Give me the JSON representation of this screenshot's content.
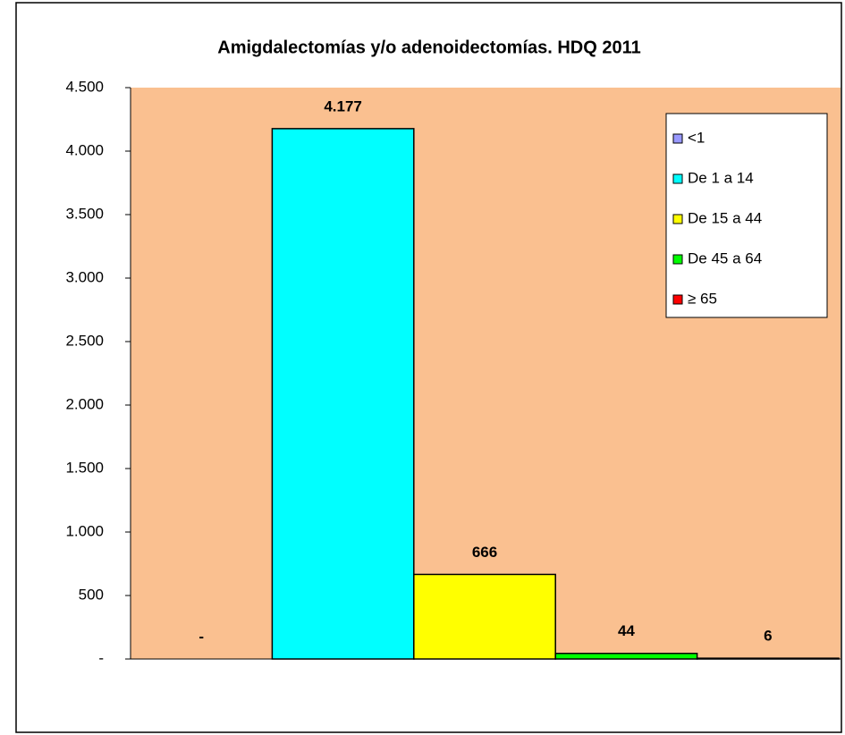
{
  "chart_data": {
    "type": "bar",
    "title": "Amigdalectomías y/o adenoidectomías. HDQ  2011",
    "series": [
      {
        "name": "<1",
        "color": "#9999ff",
        "values": [
          0
        ],
        "value_labels": [
          "-"
        ]
      },
      {
        "name": "De 1 a 14",
        "color": "#00ffff",
        "values": [
          4177
        ],
        "value_labels": [
          "4.177"
        ]
      },
      {
        "name": "De 15 a 44",
        "color": "#ffff00",
        "values": [
          666
        ]
      },
      {
        "name": "De 45 a 64",
        "color": "#00ff00",
        "values": [
          44
        ]
      },
      {
        "name": "≥ 65",
        "color": "#ff0000",
        "values": [
          6
        ]
      }
    ],
    "ylim": [
      0,
      4500
    ],
    "yticks": [
      {
        "value": 0,
        "label": "-"
      },
      500,
      {
        "value": 1000,
        "label": "1.000"
      },
      {
        "value": 1500,
        "label": "1.500"
      },
      {
        "value": 2000,
        "label": "2.000"
      },
      {
        "value": 2500,
        "label": "2.500"
      },
      {
        "value": 3000,
        "label": "3.000"
      },
      {
        "value": 3500,
        "label": "3.500"
      },
      {
        "value": 4000,
        "label": "4.000"
      },
      {
        "value": 4500,
        "label": "4.500"
      }
    ],
    "plot_background": "#fac090",
    "legend": "upper right"
  }
}
